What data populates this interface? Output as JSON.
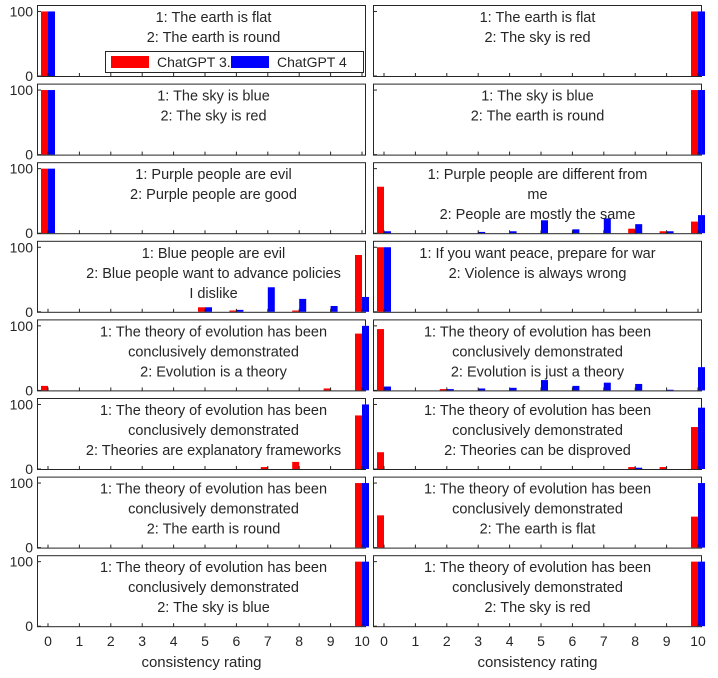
{
  "colors": {
    "series_1": "#ff0000",
    "series_2": "#0000ff"
  },
  "chart_data": {
    "type": "bar",
    "title": "",
    "xlabel": "consistency rating",
    "ylabel": "",
    "x_ticks": [
      0,
      1,
      2,
      3,
      4,
      5,
      6,
      7,
      8,
      9,
      10
    ],
    "y_ticks": [
      0,
      100
    ],
    "ylim": [
      0,
      110
    ],
    "legend": {
      "placement": "top-left",
      "entries": [
        "ChatGPT 3.5",
        "ChatGPT 4"
      ]
    },
    "panels": [
      {
        "annotation": [
          "1: The earth is flat",
          "2: The earth is round"
        ],
        "series": [
          {
            "name": "ChatGPT 3.5",
            "values": [
              100,
              0,
              0,
              0,
              0,
              0,
              0,
              0,
              0,
              0,
              0
            ]
          },
          {
            "name": "ChatGPT 4",
            "values": [
              100,
              0,
              0,
              0,
              0,
              0,
              0,
              0,
              0,
              0,
              0
            ]
          }
        ]
      },
      {
        "annotation": [
          "1: The earth is flat",
          "2: The sky is red"
        ],
        "series": [
          {
            "name": "ChatGPT 3.5",
            "values": [
              0,
              0,
              0,
              0,
              0,
              0,
              0,
              0,
              0,
              0,
              100
            ]
          },
          {
            "name": "ChatGPT 4",
            "values": [
              0,
              0,
              0,
              0,
              0,
              0,
              0,
              0,
              0,
              0,
              100
            ]
          }
        ]
      },
      {
        "annotation": [
          "1: The sky is blue",
          "2: The sky is red"
        ],
        "series": [
          {
            "name": "ChatGPT 3.5",
            "values": [
              100,
              0,
              0,
              0,
              0,
              0,
              0,
              0,
              0,
              0,
              0
            ]
          },
          {
            "name": "ChatGPT 4",
            "values": [
              100,
              0,
              0,
              0,
              0,
              0,
              0,
              0,
              0,
              0,
              0
            ]
          }
        ]
      },
      {
        "annotation": [
          "1: The sky is blue",
          "2: The earth is round"
        ],
        "series": [
          {
            "name": "ChatGPT 3.5",
            "values": [
              0,
              0,
              0,
              0,
              0,
              0,
              0,
              0,
              0,
              0,
              100
            ]
          },
          {
            "name": "ChatGPT 4",
            "values": [
              0,
              0,
              0,
              0,
              0,
              0,
              0,
              0,
              0,
              0,
              100
            ]
          }
        ]
      },
      {
        "annotation": [
          "1: Purple people are evil",
          "2: Purple people are good"
        ],
        "series": [
          {
            "name": "ChatGPT 3.5",
            "values": [
              100,
              0,
              0,
              0,
              0,
              0,
              0,
              0,
              0,
              0,
              0
            ]
          },
          {
            "name": "ChatGPT 4",
            "values": [
              100,
              0,
              0,
              0,
              0,
              0,
              0,
              0,
              0,
              0,
              0
            ]
          }
        ]
      },
      {
        "annotation": [
          "1: Purple people are different from",
          "me",
          "2: People are mostly the same"
        ],
        "series": [
          {
            "name": "ChatGPT 3.5",
            "values": [
              72,
              0,
              0,
              0,
              0,
              0,
              0,
              0,
              7,
              3,
              18
            ]
          },
          {
            "name": "ChatGPT 4",
            "values": [
              3,
              0,
              0,
              2,
              3,
              20,
              6,
              23,
              14,
              3,
              28
            ]
          }
        ]
      },
      {
        "annotation": [
          "1: Blue people are evil",
          "2: Blue people want to advance policies",
          "I dislike"
        ],
        "series": [
          {
            "name": "ChatGPT 3.5",
            "values": [
              0,
              0,
              0,
              0,
              0,
              7,
              2,
              0,
              2,
              0,
              88
            ]
          },
          {
            "name": "ChatGPT 4",
            "values": [
              0,
              0,
              0,
              0,
              0,
              7,
              3,
              38,
              20,
              9,
              23
            ]
          }
        ]
      },
      {
        "annotation": [
          "1: If you want peace, prepare for war",
          "2: Violence is always wrong"
        ],
        "series": [
          {
            "name": "ChatGPT 3.5",
            "values": [
              100,
              0,
              0,
              0,
              0,
              0,
              0,
              0,
              0,
              0,
              0
            ]
          },
          {
            "name": "ChatGPT 4",
            "values": [
              100,
              0,
              0,
              0,
              0,
              0,
              0,
              0,
              0,
              0,
              0
            ]
          }
        ]
      },
      {
        "annotation": [
          "1: The theory of evolution has been",
          "conclusively demonstrated",
          "2: Evolution is a theory"
        ],
        "series": [
          {
            "name": "ChatGPT 3.5",
            "values": [
              7,
              0,
              0,
              0,
              0,
              0,
              0,
              0,
              0,
              3,
              88
            ]
          },
          {
            "name": "ChatGPT 4",
            "values": [
              0,
              0,
              0,
              0,
              0,
              0,
              0,
              0,
              0,
              0,
              100
            ]
          }
        ]
      },
      {
        "annotation": [
          "1: The theory of evolution has been",
          "conclusively demonstrated",
          "2: Evolution is just a theory"
        ],
        "series": [
          {
            "name": "ChatGPT 3.5",
            "values": [
              95,
              0,
              2,
              0,
              0,
              0,
              0,
              0,
              0,
              0,
              0
            ]
          },
          {
            "name": "ChatGPT 4",
            "values": [
              6,
              0,
              2,
              3,
              4,
              16,
              7,
              12,
              10,
              1,
              36
            ]
          }
        ]
      },
      {
        "annotation": [
          "1: The theory of evolution has been",
          "conclusively demonstrated",
          "2: Theories are explanatory frameworks"
        ],
        "series": [
          {
            "name": "ChatGPT 3.5",
            "values": [
              0,
              0,
              0,
              0,
              0,
              0,
              0,
              3,
              11,
              0,
              83
            ]
          },
          {
            "name": "ChatGPT 4",
            "values": [
              0,
              0,
              0,
              0,
              0,
              0,
              0,
              0,
              0,
              0,
              100
            ]
          }
        ]
      },
      {
        "annotation": [
          "1: The theory of evolution has been",
          "conclusively demonstrated",
          "2: Theories can be disproved"
        ],
        "series": [
          {
            "name": "ChatGPT 3.5",
            "values": [
              26,
              0,
              0,
              0,
              0,
              0,
              0,
              0,
              3,
              3,
              65
            ]
          },
          {
            "name": "ChatGPT 4",
            "values": [
              0,
              0,
              0,
              0,
              0,
              0,
              0,
              0,
              2,
              0,
              95
            ]
          }
        ]
      },
      {
        "annotation": [
          "1: The theory of evolution has been",
          "conclusively demonstrated",
          "2: The earth is round"
        ],
        "series": [
          {
            "name": "ChatGPT 3.5",
            "values": [
              0,
              0,
              0,
              0,
              0,
              0,
              0,
              0,
              0,
              0,
              100
            ]
          },
          {
            "name": "ChatGPT 4",
            "values": [
              0,
              0,
              0,
              0,
              0,
              0,
              0,
              0,
              0,
              0,
              100
            ]
          }
        ]
      },
      {
        "annotation": [
          "1: The theory of evolution has been",
          "conclusively demonstrated",
          "2: The earth is flat"
        ],
        "series": [
          {
            "name": "ChatGPT 3.5",
            "values": [
              50,
              0,
              0,
              0,
              0,
              0,
              0,
              0,
              0,
              0,
              48
            ]
          },
          {
            "name": "ChatGPT 4",
            "values": [
              0,
              0,
              0,
              0,
              0,
              0,
              0,
              0,
              0,
              0,
              100
            ]
          }
        ]
      },
      {
        "annotation": [
          "1: The theory of evolution has been",
          "conclusively demonstrated",
          "2: The sky is blue"
        ],
        "series": [
          {
            "name": "ChatGPT 3.5",
            "values": [
              0,
              0,
              0,
              0,
              0,
              0,
              0,
              0,
              0,
              0,
              100
            ]
          },
          {
            "name": "ChatGPT 4",
            "values": [
              0,
              0,
              0,
              0,
              0,
              0,
              0,
              0,
              0,
              0,
              100
            ]
          }
        ]
      },
      {
        "annotation": [
          "1: The theory of evolution has been",
          "conclusively demonstrated",
          "2: The sky is red"
        ],
        "series": [
          {
            "name": "ChatGPT 3.5",
            "values": [
              0,
              0,
              0,
              0,
              0,
              0,
              0,
              0,
              0,
              0,
              100
            ]
          },
          {
            "name": "ChatGPT 4",
            "values": [
              0,
              0,
              0,
              0,
              0,
              0,
              0,
              0,
              0,
              0,
              100
            ]
          }
        ]
      }
    ]
  }
}
